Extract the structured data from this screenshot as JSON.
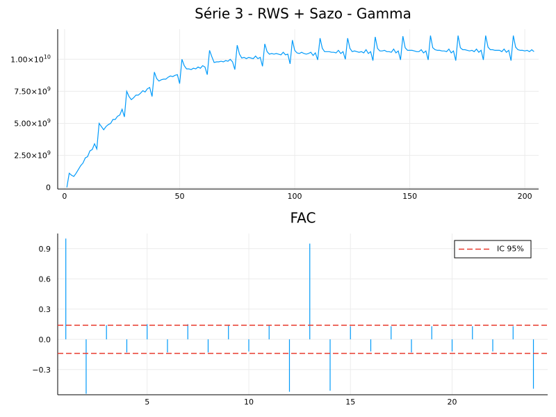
{
  "chart_data": [
    {
      "type": "line",
      "title": "Série 3 - RWS + Sazo - Gamma",
      "xlabel": "",
      "ylabel": "",
      "xlim": [
        -3,
        206
      ],
      "ylim": [
        -130000000.0,
        12350000000.0
      ],
      "xticks": [
        0,
        50,
        100,
        150,
        200
      ],
      "yticks": [
        {
          "value": 0,
          "mantissa": "0",
          "exp": ""
        },
        {
          "value": 2500000000,
          "mantissa": "2.50×10",
          "exp": "9"
        },
        {
          "value": 5000000000,
          "mantissa": "5.00×10",
          "exp": "9"
        },
        {
          "value": 7500000000,
          "mantissa": "7.50×10",
          "exp": "9"
        },
        {
          "value": 10000000000,
          "mantissa": "1.00×10",
          "exp": "10"
        }
      ],
      "grid": true,
      "color": "#009AFA",
      "series": [
        {
          "x_start": 1,
          "values": [
            0,
            1100000000,
            950000000,
            850000000,
            1100000000,
            1400000000,
            1700000000,
            1900000000,
            2300000000,
            2400000000,
            2850000000,
            2950000000,
            3400000000,
            3000000000,
            5000000000,
            4750000000,
            4500000000,
            4750000000,
            4900000000,
            5000000000,
            5300000000,
            5300000000,
            5550000000,
            5650000000,
            6100000000,
            5500000000,
            7500000000,
            7100000000,
            6850000000,
            7000000000,
            7200000000,
            7200000000,
            7350000000,
            7550000000,
            7450000000,
            7700000000,
            7800000000,
            7100000000,
            9000000000,
            8500000000,
            8300000000,
            8400000000,
            8450000000,
            8450000000,
            8600000000,
            8700000000,
            8650000000,
            8750000000,
            8800000000,
            8100000000,
            10000000000,
            9500000000,
            9250000000,
            9250000000,
            9200000000,
            9300000000,
            9250000000,
            9400000000,
            9300000000,
            9500000000,
            9400000000,
            8800000000,
            10700000000,
            10200000000,
            9750000000,
            9800000000,
            9800000000,
            9850000000,
            9800000000,
            9900000000,
            9850000000,
            10000000000,
            9800000000,
            9200000000,
            11100000000,
            10400000000,
            10100000000,
            10150000000,
            10050000000,
            10150000000,
            10100000000,
            10050000000,
            10250000000,
            10050000000,
            10150000000,
            9450000000,
            11200000000,
            10600000000,
            10400000000,
            10450000000,
            10400000000,
            10450000000,
            10400000000,
            10350000000,
            10550000000,
            10350000000,
            10400000000,
            9650000000,
            11500000000,
            10700000000,
            10500000000,
            10450000000,
            10550000000,
            10450000000,
            10400000000,
            10450000000,
            10550000000,
            10300000000,
            10500000000,
            9950000000,
            11650000000,
            10850000000,
            10600000000,
            10600000000,
            10600000000,
            10550000000,
            10550000000,
            10500000000,
            10700000000,
            10450000000,
            10600000000,
            10000000000,
            11650000000,
            10850000000,
            10600000000,
            10650000000,
            10600000000,
            10550000000,
            10600000000,
            10500000000,
            10750000000,
            10450000000,
            10600000000,
            9900000000,
            11750000000,
            10850000000,
            10650000000,
            10650000000,
            10700000000,
            10600000000,
            10600000000,
            10550000000,
            10800000000,
            10500000000,
            10650000000,
            9950000000,
            11800000000,
            10900000000,
            10700000000,
            10700000000,
            10700000000,
            10650000000,
            10600000000,
            10600000000,
            10750000000,
            10500000000,
            10650000000,
            9950000000,
            11850000000,
            10900000000,
            10750000000,
            10700000000,
            10700000000,
            10650000000,
            10650000000,
            10600000000,
            10800000000,
            10500000000,
            10650000000,
            9900000000,
            11850000000,
            10900000000,
            10750000000,
            10750000000,
            10700000000,
            10650000000,
            10700000000,
            10600000000,
            10800000000,
            10550000000,
            10700000000,
            9950000000,
            11850000000,
            10950000000,
            10750000000,
            10750000000,
            10700000000,
            10700000000,
            10700000000,
            10600000000,
            10800000000,
            10550000000,
            10700000000,
            9900000000,
            11850000000,
            10950000000,
            10750000000,
            10700000000,
            10700000000,
            10650000000,
            10700000000,
            10600000000,
            10750000000,
            10600000000
          ]
        }
      ]
    },
    {
      "type": "bar",
      "title": "FAC",
      "xlabel": "",
      "ylabel": "",
      "xlim": [
        0.6,
        24.7
      ],
      "ylim": [
        -0.55,
        1.05
      ],
      "xticks": [
        5,
        10,
        15,
        20
      ],
      "yticks": [
        "-0.3",
        "0.0",
        "0.3",
        "0.6",
        "0.9"
      ],
      "ytick_values": [
        -0.3,
        0,
        0.3,
        0.6,
        0.9
      ],
      "grid": true,
      "color": "#009AFA",
      "lags": [
        1,
        2,
        3,
        4,
        5,
        6,
        7,
        8,
        9,
        10,
        11,
        12,
        13,
        14,
        15,
        16,
        17,
        18,
        19,
        20,
        21,
        22,
        23,
        24
      ],
      "values": [
        1.0,
        -0.54,
        0.14,
        -0.13,
        0.15,
        -0.13,
        0.15,
        -0.13,
        0.14,
        -0.12,
        0.14,
        -0.52,
        0.95,
        -0.51,
        0.13,
        -0.12,
        0.13,
        -0.13,
        0.13,
        -0.12,
        0.13,
        -0.12,
        0.13,
        -0.49
      ],
      "confidence_band": {
        "label": "IC 95%",
        "upper": 0.14,
        "lower": -0.14,
        "color": "#E8392C"
      },
      "legend": {
        "position": "top-right",
        "entries": [
          "IC 95%"
        ]
      }
    }
  ]
}
